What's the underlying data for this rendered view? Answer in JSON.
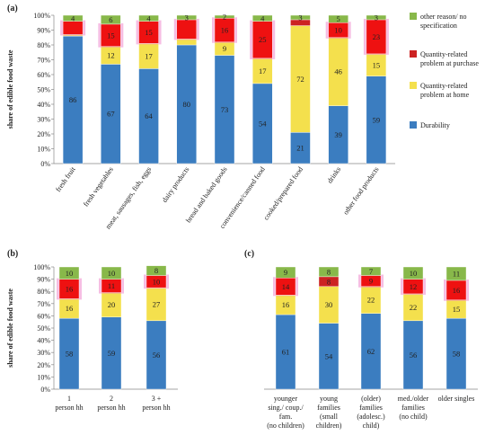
{
  "colors": {
    "Durability": "#3b7dc0",
    "Quantity-related problem at home": "#f4e04d",
    "Quantity-related problem at purchase": "#cc2222",
    "other reason/ no specification": "#88b84a",
    "bright_red": "#ee1111",
    "pink_halo": "#ee88cc"
  },
  "legend": {
    "items": [
      {
        "key": "other reason/ no specification",
        "lines": [
          "other reason/ no",
          "specification"
        ]
      },
      {
        "key": "Quantity-related problem at purchase",
        "lines": [
          "Quantity-related",
          "problem at purchase"
        ]
      },
      {
        "key": "Quantity-related problem at home",
        "lines": [
          "Quantity-related",
          "problem at home"
        ]
      },
      {
        "key": "Durability",
        "lines": [
          "Durability"
        ]
      }
    ]
  },
  "chart_data": [
    {
      "panel": "(a)",
      "type": "bar",
      "stacked": true,
      "ylabel": "share of edible food waste",
      "ylim": [
        0,
        100
      ],
      "yticks": [
        "0%",
        "10%",
        "20%",
        "30%",
        "40%",
        "50%",
        "60%",
        "70%",
        "80%",
        "90%",
        "100%"
      ],
      "categories": [
        "fresh fruit",
        "fresh vegetables",
        "meat, sausages, fish, eggs",
        "dairy products",
        "bread and baked goods",
        "convenience/canned food",
        "cooked/prepared food",
        "drinks",
        "other food products"
      ],
      "series": [
        {
          "name": "Durability",
          "values": [
            86,
            67,
            64,
            80,
            73,
            54,
            21,
            39,
            59
          ],
          "labels": [
            "86",
            "67",
            "64",
            "80",
            "73",
            "54",
            "21",
            "39",
            "59"
          ]
        },
        {
          "name": "Quantity-related problem at home",
          "values": [
            1,
            12,
            17,
            4,
            9,
            17,
            72,
            46,
            15
          ],
          "labels": [
            "",
            "12",
            "17",
            "",
            "9",
            "17",
            "72",
            "46",
            "15"
          ]
        },
        {
          "name": "Quantity-related problem at purchase",
          "values": [
            9,
            15,
            15,
            13,
            16,
            25,
            4,
            10,
            23
          ],
          "labels": [
            "",
            "15",
            "15",
            "",
            "16",
            "25",
            "",
            "10",
            "23"
          ]
        },
        {
          "name": "other reason/ no specification",
          "values": [
            4,
            6,
            4,
            3,
            2,
            4,
            3,
            5,
            3
          ],
          "labels": [
            "4",
            "6",
            "4",
            "3",
            "2",
            "4",
            "3",
            "5",
            "3"
          ]
        }
      ]
    },
    {
      "panel": "(b)",
      "type": "bar",
      "stacked": true,
      "ylabel": "share of edible food waste",
      "ylim": [
        0,
        100
      ],
      "yticks": [
        "0%",
        "10%",
        "20%",
        "30%",
        "40%",
        "50%",
        "60%",
        "70%",
        "80%",
        "90%",
        "100%"
      ],
      "categories": [
        [
          "1",
          "person hh"
        ],
        [
          "2",
          "person hh"
        ],
        [
          "3 +",
          "person hh"
        ]
      ],
      "series": [
        {
          "name": "Durability",
          "values": [
            58,
            59,
            56
          ],
          "labels": [
            "58",
            "59",
            "56"
          ]
        },
        {
          "name": "Quantity-related problem at home",
          "values": [
            16,
            20,
            27
          ],
          "labels": [
            "16",
            "20",
            "27"
          ]
        },
        {
          "name": "Quantity-related problem at purchase",
          "values": [
            16,
            11,
            10
          ],
          "labels": [
            "16",
            "11",
            "10"
          ]
        },
        {
          "name": "other reason/ no specification",
          "values": [
            10,
            10,
            8
          ],
          "labels": [
            "10",
            "10",
            "8"
          ]
        }
      ]
    },
    {
      "panel": "(c)",
      "type": "bar",
      "stacked": true,
      "ylim": [
        0,
        100
      ],
      "yticks": [
        "0%",
        "10%",
        "20%",
        "30%",
        "40%",
        "50%",
        "60%",
        "70%",
        "80%",
        "90%",
        "100%"
      ],
      "categories": [
        [
          "younger",
          "sing./ coup./",
          "fam.",
          "(no children)"
        ],
        [
          "young",
          "families",
          "(small",
          "children)"
        ],
        [
          "(older)",
          "families",
          "(adolesc.)",
          "child)"
        ],
        [
          "med./older",
          "families",
          "(no child)"
        ],
        [
          "older singles"
        ]
      ],
      "series": [
        {
          "name": "Durability",
          "values": [
            61,
            54,
            62,
            56,
            58
          ],
          "labels": [
            "61",
            "54",
            "62",
            "56",
            "58"
          ]
        },
        {
          "name": "Quantity-related problem at home",
          "values": [
            16,
            30,
            22,
            22,
            15
          ],
          "labels": [
            "16",
            "30",
            "22",
            "22",
            "15"
          ]
        },
        {
          "name": "Quantity-related problem at purchase",
          "values": [
            14,
            8,
            9,
            12,
            16
          ],
          "labels": [
            "14",
            "8",
            "9",
            "12",
            "16"
          ]
        },
        {
          "name": "other reason/ no specification",
          "values": [
            9,
            8,
            7,
            10,
            11
          ],
          "labels": [
            "9",
            "8",
            "7",
            "10",
            "11"
          ]
        }
      ]
    }
  ]
}
